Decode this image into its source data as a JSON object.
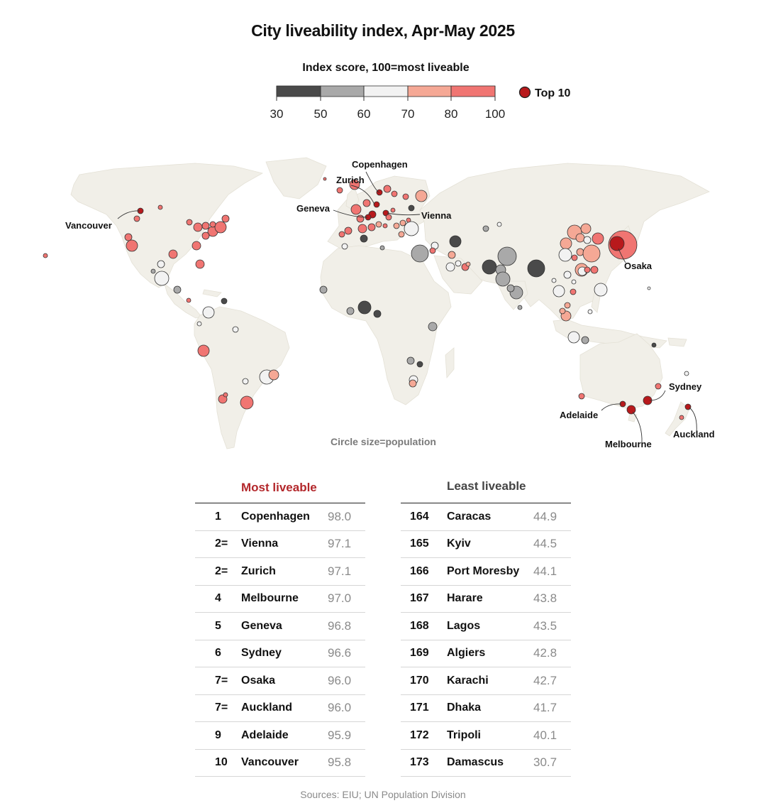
{
  "title": "City liveability index, Apr-May 2025",
  "legend": {
    "title": "Index score, 100=most liveable",
    "ticks": [
      "30",
      "50",
      "60",
      "70",
      "80",
      "100"
    ],
    "bins": [
      {
        "from": 30,
        "to": 50,
        "color": "#4a4a4a"
      },
      {
        "from": 50,
        "to": 60,
        "color": "#a9a9a9"
      },
      {
        "from": 60,
        "to": 70,
        "color": "#f2f2f2"
      },
      {
        "from": 70,
        "to": 80,
        "color": "#f5a895"
      },
      {
        "from": 80,
        "to": 100,
        "color": "#f07572"
      }
    ],
    "top10_label": "Top 10",
    "top10_color": "#b8191c"
  },
  "map": {
    "circle_note": "Circle size=population",
    "land_color": "#f1efe8",
    "labeled_cities": [
      "Copenhagen",
      "Zurich",
      "Geneva",
      "Vienna",
      "Vancouver",
      "Osaka",
      "Sydney",
      "Adelaide",
      "Melbourne",
      "Auckland"
    ]
  },
  "chart_data": {
    "type": "table",
    "title": "City liveability index, Apr-May 2025",
    "most_liveable": {
      "heading": "Most liveable",
      "rows": [
        {
          "rank": "1",
          "city": "Copenhagen",
          "score": "98.0"
        },
        {
          "rank": "2=",
          "city": "Vienna",
          "score": "97.1"
        },
        {
          "rank": "2=",
          "city": "Zurich",
          "score": "97.1"
        },
        {
          "rank": "4",
          "city": "Melbourne",
          "score": "97.0"
        },
        {
          "rank": "5",
          "city": "Geneva",
          "score": "96.8"
        },
        {
          "rank": "6",
          "city": "Sydney",
          "score": "96.6"
        },
        {
          "rank": "7=",
          "city": "Osaka",
          "score": "96.0"
        },
        {
          "rank": "7=",
          "city": "Auckland",
          "score": "96.0"
        },
        {
          "rank": "9",
          "city": "Adelaide",
          "score": "95.9"
        },
        {
          "rank": "10",
          "city": "Vancouver",
          "score": "95.8"
        }
      ]
    },
    "least_liveable": {
      "heading": "Least liveable",
      "rows": [
        {
          "rank": "164",
          "city": "Caracas",
          "score": "44.9"
        },
        {
          "rank": "165",
          "city": "Kyiv",
          "score": "44.5"
        },
        {
          "rank": "166",
          "city": "Port Moresby",
          "score": "44.1"
        },
        {
          "rank": "167",
          "city": "Harare",
          "score": "43.8"
        },
        {
          "rank": "168",
          "city": "Lagos",
          "score": "43.5"
        },
        {
          "rank": "169",
          "city": "Algiers",
          "score": "42.8"
        },
        {
          "rank": "170",
          "city": "Karachi",
          "score": "42.7"
        },
        {
          "rank": "171",
          "city": "Dhaka",
          "score": "41.7"
        },
        {
          "rank": "172",
          "city": "Tripoli",
          "score": "40.1"
        },
        {
          "rank": "173",
          "city": "Damascus",
          "score": "30.7"
        }
      ]
    }
  },
  "source": "Sources: EIU; UN Population Division"
}
